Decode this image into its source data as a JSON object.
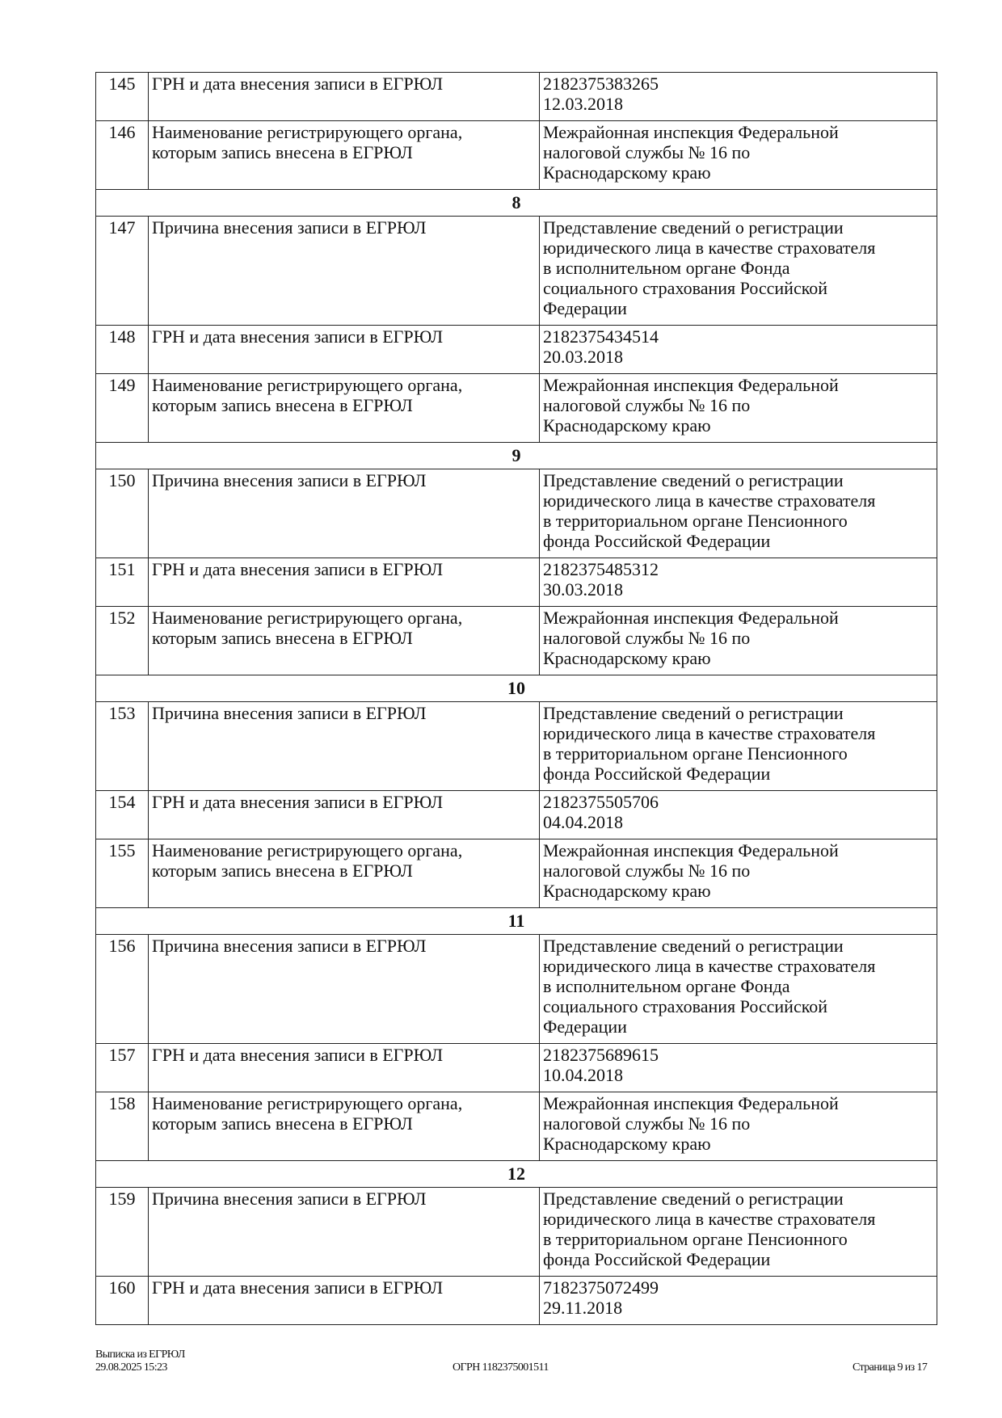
{
  "table": {
    "rows": [
      {
        "type": "row",
        "num": "145",
        "label": "ГРН и дата внесения записи в ЕГРЮЛ",
        "value": "2182375383265\n12.03.2018"
      },
      {
        "type": "row",
        "num": "146",
        "label": "Наименование регистрирующего органа,\nкоторым запись внесена в ЕГРЮЛ",
        "value": "Межрайонная инспекция Федеральной\nналоговой службы № 16 по\nКраснодарскому краю"
      },
      {
        "type": "section",
        "title": "8"
      },
      {
        "type": "row",
        "num": "147",
        "label": "Причина внесения записи в ЕГРЮЛ",
        "value": "Представление сведений о регистрации\nюридического лица в качестве страхователя\nв исполнительном органе Фонда\nсоциального страхования Российской\nФедерации"
      },
      {
        "type": "row",
        "num": "148",
        "label": "ГРН и дата внесения записи в ЕГРЮЛ",
        "value": "2182375434514\n20.03.2018"
      },
      {
        "type": "row",
        "num": "149",
        "label": "Наименование регистрирующего органа,\nкоторым запись внесена в ЕГРЮЛ",
        "value": "Межрайонная инспекция Федеральной\nналоговой службы № 16 по\nКраснодарскому краю"
      },
      {
        "type": "section",
        "title": "9"
      },
      {
        "type": "row",
        "num": "150",
        "label": "Причина внесения записи в ЕГРЮЛ",
        "value": "Представление сведений о регистрации\nюридического лица в качестве страхователя\nв территориальном органе Пенсионного\nфонда Российской Федерации"
      },
      {
        "type": "row",
        "num": "151",
        "label": "ГРН и дата внесения записи в ЕГРЮЛ",
        "value": "2182375485312\n30.03.2018"
      },
      {
        "type": "row",
        "num": "152",
        "label": "Наименование регистрирующего органа,\nкоторым запись внесена в ЕГРЮЛ",
        "value": "Межрайонная инспекция Федеральной\nналоговой службы № 16 по\nКраснодарскому краю"
      },
      {
        "type": "section",
        "title": "10"
      },
      {
        "type": "row",
        "num": "153",
        "label": "Причина внесения записи в ЕГРЮЛ",
        "value": "Представление сведений о регистрации\nюридического лица в качестве страхователя\nв территориальном органе Пенсионного\nфонда Российской Федерации"
      },
      {
        "type": "row",
        "num": "154",
        "label": "ГРН и дата внесения записи в ЕГРЮЛ",
        "value": "2182375505706\n04.04.2018"
      },
      {
        "type": "row",
        "num": "155",
        "label": "Наименование регистрирующего органа,\nкоторым запись внесена в ЕГРЮЛ",
        "value": "Межрайонная инспекция Федеральной\nналоговой службы № 16 по\nКраснодарскому краю"
      },
      {
        "type": "section",
        "title": "11"
      },
      {
        "type": "row",
        "num": "156",
        "label": "Причина внесения записи в ЕГРЮЛ",
        "value": "Представление сведений о регистрации\nюридического лица в качестве страхователя\nв исполнительном органе Фонда\nсоциального страхования Российской\nФедерации"
      },
      {
        "type": "row",
        "num": "157",
        "label": "ГРН и дата внесения записи в ЕГРЮЛ",
        "value": "2182375689615\n10.04.2018"
      },
      {
        "type": "row",
        "num": "158",
        "label": "Наименование регистрирующего органа,\nкоторым запись внесена в ЕГРЮЛ",
        "value": "Межрайонная инспекция Федеральной\nналоговой службы № 16 по\nКраснодарскому краю"
      },
      {
        "type": "section",
        "title": "12"
      },
      {
        "type": "row",
        "num": "159",
        "label": "Причина внесения записи в ЕГРЮЛ",
        "value": "Представление сведений о регистрации\nюридического лица в качестве страхователя\nв территориальном органе Пенсионного\nфонда Российской Федерации"
      },
      {
        "type": "row",
        "num": "160",
        "label": "ГРН и дата внесения записи в ЕГРЮЛ",
        "value": "7182375072499\n29.11.2018"
      }
    ]
  },
  "footer": {
    "doc_title": "Выписка из ЕГРЮЛ",
    "datetime": "29.08.2025 15:23",
    "ogrn": "ОГРН 1182375001511",
    "page": "Страница 9 из 17"
  }
}
